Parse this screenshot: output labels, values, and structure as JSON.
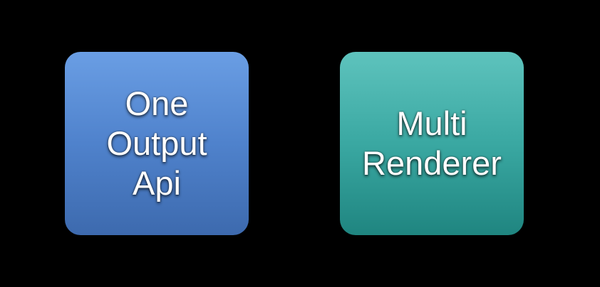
{
  "boxes": {
    "left": {
      "lines": [
        "One",
        "Output",
        "Api"
      ],
      "color_top": "#6a9ee4",
      "color_bottom": "#3d6aae"
    },
    "right": {
      "lines": [
        "Multi",
        "Renderer"
      ],
      "color_top": "#5ec3bd",
      "color_bottom": "#1f8580"
    }
  },
  "background": "#000000"
}
